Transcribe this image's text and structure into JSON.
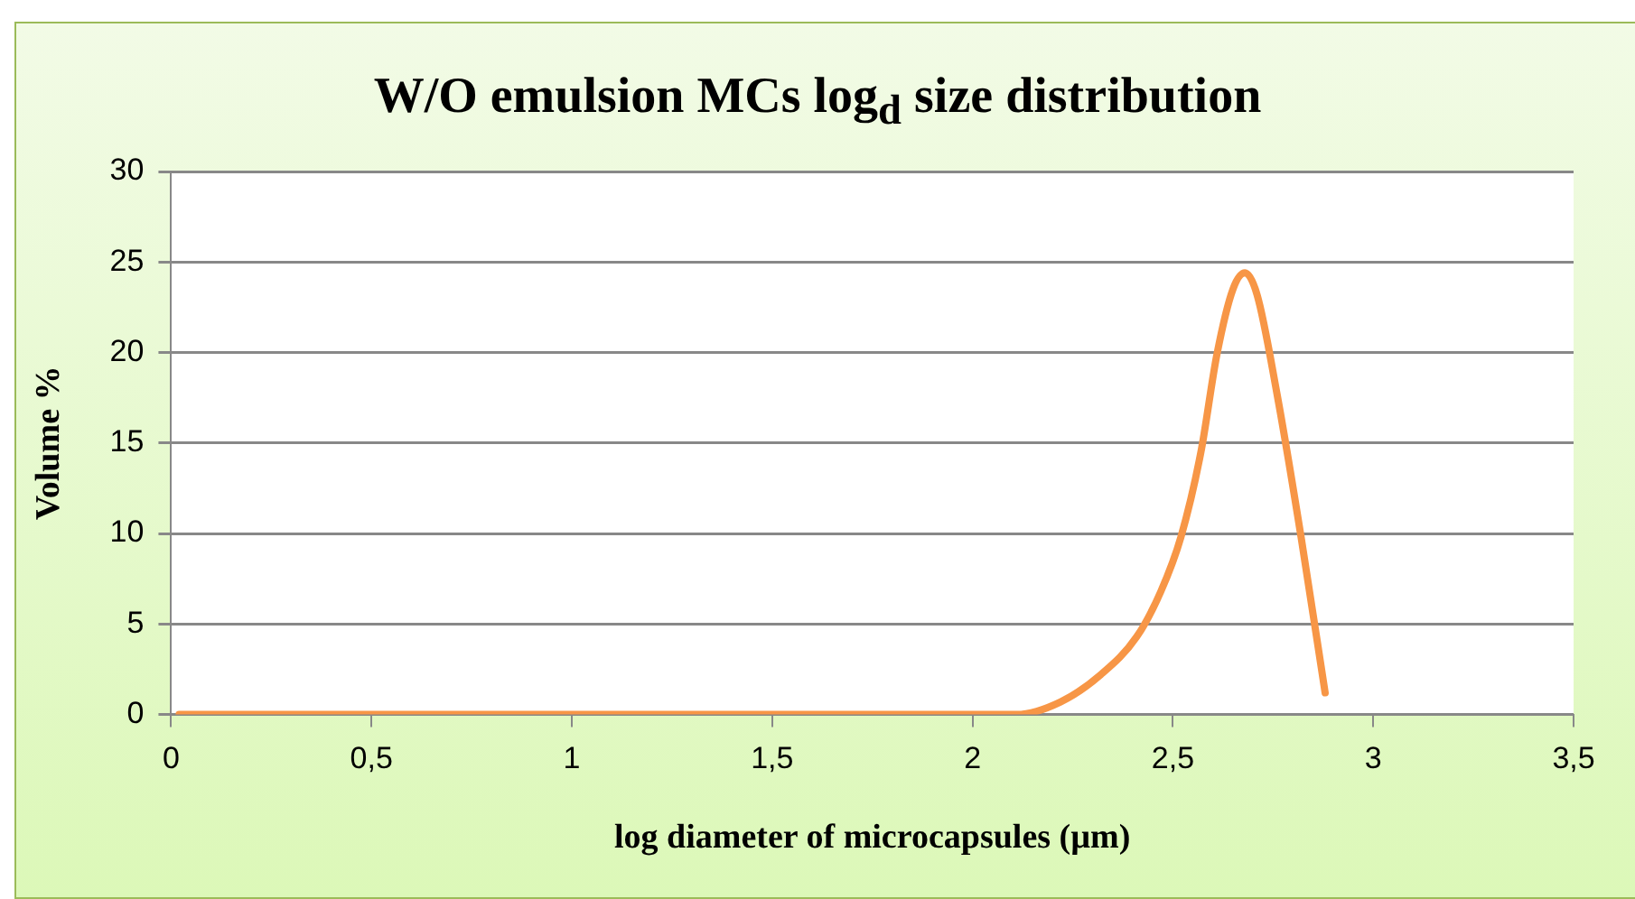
{
  "chart_data": {
    "type": "line",
    "title": "W/O emulsion MCs log$_{d}$ size distribution",
    "xlabel": "log diameter of microcapsules (µm)",
    "ylabel": "Volume %",
    "x": [
      0.02,
      0.5,
      1,
      1.5,
      2,
      2.11,
      2.22,
      2.32,
      2.41,
      2.47,
      2.52,
      2.57,
      2.61,
      2.65,
      2.68,
      2.71,
      2.76,
      2.82,
      2.88
    ],
    "series": [
      {
        "color": "#f79646",
        "values": [
          0,
          0,
          0,
          0,
          0,
          0,
          0.7,
          2.2,
          4.3,
          6.8,
          9.8,
          14.5,
          19.9,
          23.5,
          24.4,
          23.2,
          17.7,
          9.8,
          1.2
        ]
      }
    ],
    "xlim": [
      0,
      3.5
    ],
    "xticks": [
      0,
      {
        "value": 0.5,
        "label": "0,5"
      },
      1,
      {
        "value": 1.5,
        "label": "1,5"
      },
      2,
      {
        "value": 2.5,
        "label": "2,5"
      },
      3,
      {
        "value": 3.5,
        "label": "3,5"
      }
    ],
    "ylim": [
      0,
      30
    ],
    "yticks": [
      0,
      5,
      10,
      15,
      20,
      25,
      30
    ],
    "grid": "y",
    "legend": false,
    "marker": "none",
    "line_style": "solid"
  }
}
